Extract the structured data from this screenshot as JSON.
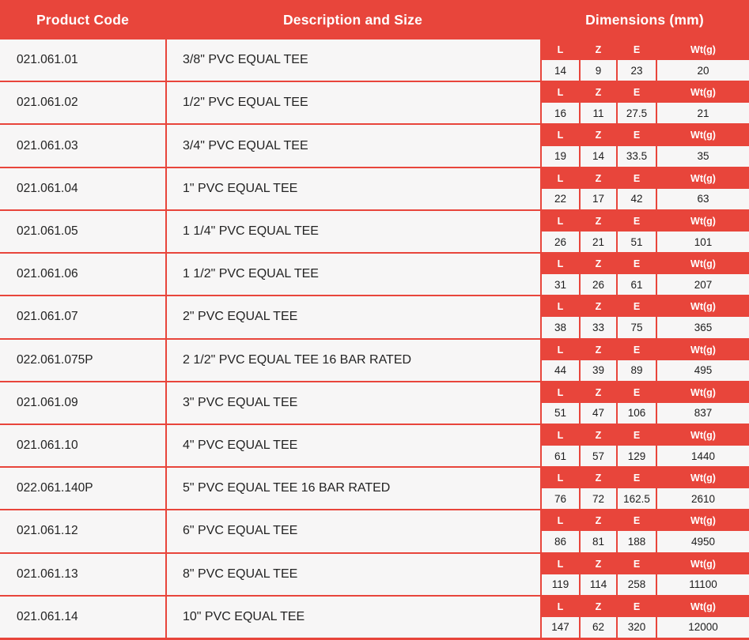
{
  "colors": {
    "accent_red": "#e8453b",
    "cell_background": "#f7f6f6",
    "header_text": "#ffffff",
    "body_text": "#232323"
  },
  "table": {
    "headers": {
      "product_code": "Product Code",
      "description": "Description and Size",
      "dimensions": "Dimensions (mm)"
    },
    "dim_headers": [
      "L",
      "Z",
      "E",
      "Wt(g)"
    ],
    "rows": [
      {
        "code": "021.061.01",
        "desc": "3/8\" PVC EQUAL TEE",
        "dims": [
          "14",
          "9",
          "23",
          "20"
        ]
      },
      {
        "code": "021.061.02",
        "desc": "1/2\" PVC EQUAL TEE",
        "dims": [
          "16",
          "11",
          "27.5",
          "21"
        ]
      },
      {
        "code": "021.061.03",
        "desc": "3/4\" PVC EQUAL TEE",
        "dims": [
          "19",
          "14",
          "33.5",
          "35"
        ]
      },
      {
        "code": "021.061.04",
        "desc": "1\" PVC EQUAL TEE",
        "dims": [
          "22",
          "17",
          "42",
          "63"
        ]
      },
      {
        "code": "021.061.05",
        "desc": "1 1/4\" PVC EQUAL TEE",
        "dims": [
          "26",
          "21",
          "51",
          "101"
        ]
      },
      {
        "code": "021.061.06",
        "desc": "1 1/2\" PVC EQUAL TEE",
        "dims": [
          "31",
          "26",
          "61",
          "207"
        ]
      },
      {
        "code": "021.061.07",
        "desc": "2\" PVC EQUAL TEE",
        "dims": [
          "38",
          "33",
          "75",
          "365"
        ]
      },
      {
        "code": "022.061.075P",
        "desc": "2 1/2\" PVC EQUAL TEE 16 BAR RATED",
        "dims": [
          "44",
          "39",
          "89",
          "495"
        ]
      },
      {
        "code": "021.061.09",
        "desc": "3\" PVC EQUAL TEE",
        "dims": [
          "51",
          "47",
          "106",
          "837"
        ]
      },
      {
        "code": "021.061.10",
        "desc": "4\" PVC EQUAL TEE",
        "dims": [
          "61",
          "57",
          "129",
          "1440"
        ]
      },
      {
        "code": "022.061.140P",
        "desc": "5\" PVC EQUAL TEE 16 BAR RATED",
        "dims": [
          "76",
          "72",
          "162.5",
          "2610"
        ]
      },
      {
        "code": "021.061.12",
        "desc": "6\" PVC EQUAL TEE",
        "dims": [
          "86",
          "81",
          "188",
          "4950"
        ]
      },
      {
        "code": "021.061.13",
        "desc": "8\" PVC EQUAL TEE",
        "dims": [
          "119",
          "114",
          "258",
          "11100"
        ]
      },
      {
        "code": "021.061.14",
        "desc": "10\" PVC EQUAL TEE",
        "dims": [
          "147",
          "62",
          "320",
          "12000"
        ]
      }
    ]
  }
}
